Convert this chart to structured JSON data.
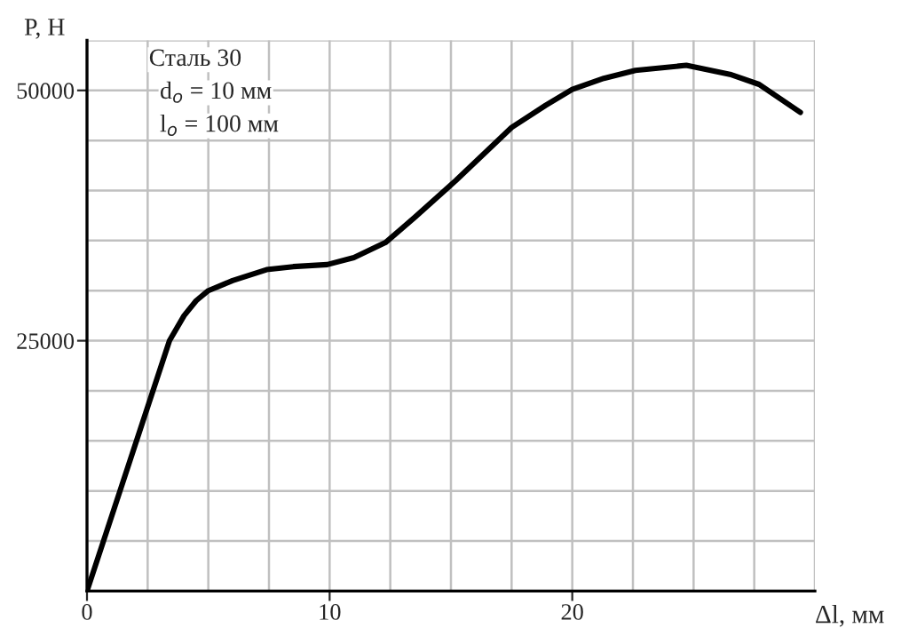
{
  "chart_data": {
    "type": "line",
    "xlabel": "Δl, мм",
    "ylabel": "P, Н",
    "annotations": [
      "Сталь 30",
      "d$_{o}$ = 10 мм",
      "l$_{o}$ = 100 мм"
    ],
    "x": [
      0,
      3.4,
      4.0,
      4.5,
      5.0,
      6.0,
      7.4,
      8.5,
      9.9,
      11.0,
      12.3,
      13.5,
      15.2,
      17.5,
      18.9,
      20.0,
      21.3,
      22.6,
      24.7,
      26.5,
      27.7,
      29.4
    ],
    "series": [
      {
        "color": "#000000",
        "values": [
          0,
          25000,
          27500,
          29000,
          30000,
          31000,
          32100,
          32400,
          32600,
          33300,
          34800,
          37300,
          41000,
          46300,
          48500,
          50100,
          51200,
          52000,
          52500,
          51600,
          50600,
          47800
        ]
      }
    ],
    "xlim": [
      0,
      30
    ],
    "ylim": [
      0,
      55000
    ],
    "xticks": [
      0,
      {
        "value": 2.5,
        "label": null
      },
      {
        "value": 5,
        "label": null
      },
      {
        "value": 7.5,
        "label": null
      },
      10,
      {
        "value": 12.5,
        "label": null
      },
      {
        "value": 15,
        "label": null
      },
      {
        "value": 17.5,
        "label": null
      },
      20,
      {
        "value": 22.5,
        "label": null
      },
      {
        "value": 25,
        "label": null
      },
      {
        "value": 27.5,
        "label": null
      },
      {
        "value": 30,
        "label": null
      }
    ],
    "yticks": [
      {
        "value": 0,
        "label": null
      },
      {
        "value": 5000,
        "label": null
      },
      {
        "value": 10000,
        "label": null
      },
      {
        "value": 15000,
        "label": null
      },
      {
        "value": 20000,
        "label": null
      },
      25000,
      {
        "value": 30000,
        "label": null
      },
      {
        "value": 35000,
        "label": null
      },
      {
        "value": 40000,
        "label": null
      },
      {
        "value": 45000,
        "label": null
      },
      50000,
      {
        "value": 55000,
        "label": null
      }
    ],
    "grid": true,
    "legend": false,
    "marker": "none",
    "line_style": "solid"
  }
}
